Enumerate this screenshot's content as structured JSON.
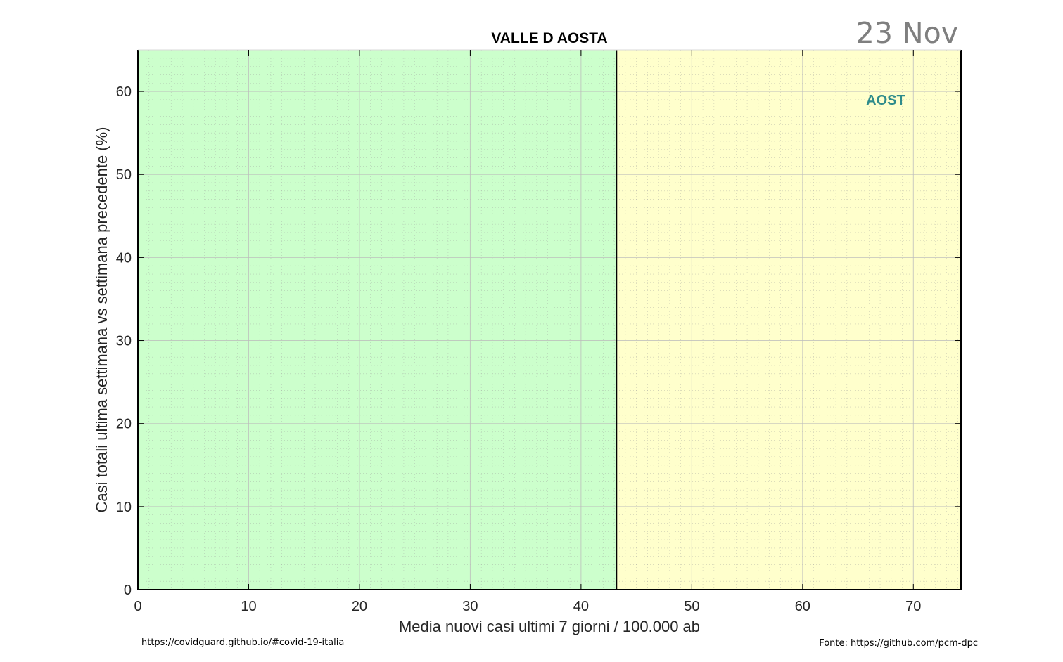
{
  "chart_data": {
    "type": "scatter",
    "title": "VALLE D AOSTA",
    "date_label": "23 Nov",
    "xlabel": "Media nuovi casi ultimi 7 giorni / 100.000 ab",
    "ylabel": "Casi totali ultima settimana vs settimana precedente (%)",
    "xlim": [
      0,
      74.3
    ],
    "ylim": [
      0,
      65
    ],
    "xticks": [
      0,
      10,
      20,
      30,
      40,
      50,
      60,
      70
    ],
    "yticks": [
      0,
      10,
      20,
      30,
      40,
      50,
      60
    ],
    "grid": true,
    "minor_grid": true,
    "zones": [
      {
        "name": "green",
        "x_from": 0,
        "x_to": 43.2,
        "color": "#ccffcc"
      },
      {
        "name": "yellow",
        "x_from": 43.2,
        "x_to": 74.3,
        "color": "#ffffcc"
      }
    ],
    "threshold_x": 43.2,
    "points": [
      {
        "label": "AOST",
        "x": 67.5,
        "y": 59.0,
        "color": "#2e8b8b"
      }
    ]
  },
  "footer": {
    "left": "https://covidguard.github.io/#covid-19-italia",
    "right": "Fonte: https://github.com/pcm-dpc"
  }
}
